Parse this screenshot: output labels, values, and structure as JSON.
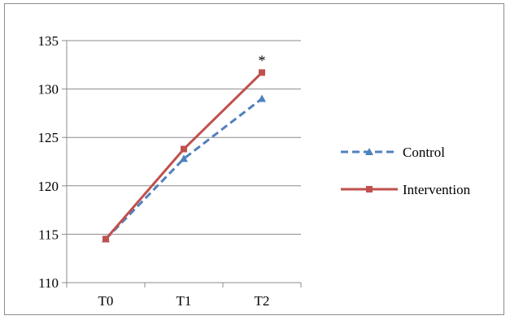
{
  "chart_data": {
    "type": "line",
    "categories": [
      "T0",
      "T1",
      "T2"
    ],
    "series": [
      {
        "name": "Control",
        "values": [
          114.5,
          122.8,
          129.0
        ],
        "color": "#4f81bd",
        "line_style": "dashed",
        "marker": "triangle"
      },
      {
        "name": "Intervention",
        "values": [
          114.5,
          123.8,
          131.7
        ],
        "color": "#c0504d",
        "line_style": "solid",
        "marker": "square"
      }
    ],
    "ylim": [
      110,
      135
    ],
    "yticks": [
      110,
      115,
      120,
      125,
      130,
      135
    ],
    "grid": true,
    "legend_position": "right",
    "annotations": [
      {
        "text": "*",
        "category": "T2",
        "series": "Intervention"
      }
    ]
  }
}
